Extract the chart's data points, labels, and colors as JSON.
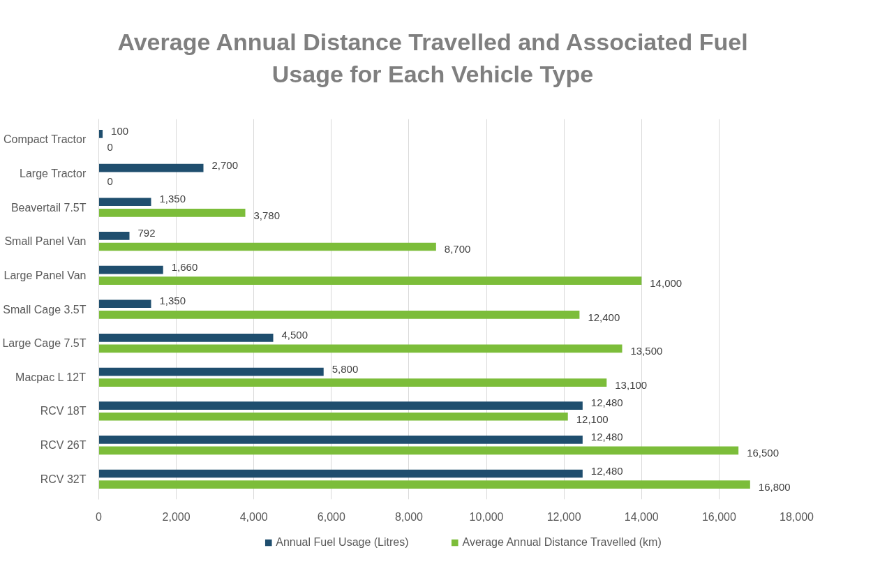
{
  "chart_data": {
    "type": "bar",
    "orientation": "horizontal",
    "title": "Average Annual Distance Travelled and Associated Fuel Usage for Each Vehicle Type",
    "categories": [
      "Compact Tractor",
      "Large Tractor",
      "Beavertail 7.5T",
      "Small Panel Van",
      "Large Panel Van",
      "Small Cage 3.5T",
      "Large Cage 7.5T",
      "Macpac L 12T",
      "RCV 18T",
      "RCV 26T",
      "RCV 32T"
    ],
    "series": [
      {
        "name": "Annual Fuel Usage (Litres)",
        "color": "#1f4e6e",
        "values": [
          100,
          2700,
          1350,
          792,
          1660,
          1350,
          4500,
          5800,
          12480,
          12480,
          12480
        ],
        "value_labels": [
          "100",
          "2,700",
          "1,350",
          "792",
          "1,660",
          "1,350",
          "4,500",
          "5,800",
          "12,480",
          "12,480",
          "12,480"
        ]
      },
      {
        "name": "Average Annual Distance Travelled (km)",
        "color": "#7cbd3a",
        "values": [
          0,
          0,
          3780,
          8700,
          14000,
          12400,
          13500,
          13100,
          12100,
          16500,
          16800
        ],
        "value_labels": [
          "0",
          "0",
          "3,780",
          "8,700",
          "14,000",
          "12,400",
          "13,500",
          "13,100",
          "12,100",
          "16,500",
          "16,800"
        ]
      }
    ],
    "xlim": [
      0,
      18000
    ],
    "xticks": [
      0,
      {
        "value": 2000,
        "label": "2,000"
      },
      {
        "value": 4000,
        "label": "4,000"
      },
      {
        "value": 6000,
        "label": "6,000"
      },
      {
        "value": 8000,
        "label": "8,000"
      },
      {
        "value": 10000,
        "label": "10,000"
      },
      {
        "value": 12000,
        "label": "12,000"
      },
      {
        "value": 14000,
        "label": "14,000"
      },
      {
        "value": 16000,
        "label": "16,000"
      },
      {
        "value": 18000,
        "label": "18,000"
      }
    ],
    "grid": "x",
    "legend": "bottom"
  }
}
